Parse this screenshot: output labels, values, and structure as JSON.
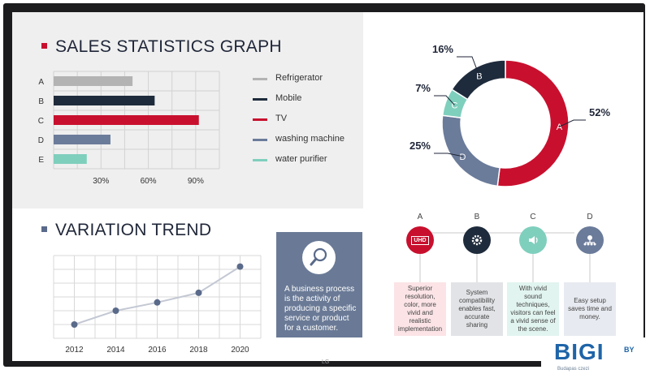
{
  "colors": {
    "title_dark": "#1f2638",
    "accent_red": "#c8102e",
    "accent_slate": "#5a6a8a",
    "refrigerator": "#b3b3b3",
    "mobile": "#1e2b3c",
    "tv": "#c8102e",
    "washing_machine": "#6b7b9a",
    "water_purifier": "#7fcfbd"
  },
  "sales": {
    "title": "SALES STATISTICS GRAPH",
    "legend": [
      "Refrigerator",
      "Mobile",
      "TV",
      "washing machine",
      "water purifier"
    ]
  },
  "trend": {
    "title": "VARIATION TREND"
  },
  "process_card": {
    "icon": "magnifier-icon",
    "text": "A business process is the activity of producing a specific service or product for a customer."
  },
  "features": [
    {
      "letter": "A",
      "icon": "uhd-icon",
      "badge": "UHD",
      "text": "Superior resolution, color, more vivid and realistic implementation"
    },
    {
      "letter": "B",
      "icon": "gear-icon",
      "text": "System compatibility enables fast, accurate sharing"
    },
    {
      "letter": "C",
      "icon": "speaker-icon",
      "text": "With vivid sound techniques, visitors can feel a vivid sense of the scene."
    },
    {
      "letter": "D",
      "icon": "network-icon",
      "text": "Easy setup saves time and money."
    }
  ],
  "brand": {
    "name": "BIGI",
    "suffix": "BY",
    "tagline": "Budapas czezi"
  },
  "bezel_logo": "LG",
  "chart_data": [
    {
      "type": "bar",
      "orientation": "horizontal",
      "title": "SALES STATISTICS GRAPH",
      "categories": [
        "A",
        "B",
        "C",
        "D",
        "E"
      ],
      "values": [
        50,
        64,
        92,
        36,
        21
      ],
      "value_unit": "%",
      "series_labels": [
        "Refrigerator",
        "Mobile",
        "TV",
        "washing machine",
        "water purifier"
      ],
      "xlim": [
        0,
        105
      ],
      "xticks": [
        30,
        60,
        90
      ],
      "xtick_labels": [
        "30%",
        "60%",
        "90%"
      ],
      "grid": true,
      "legend": "right"
    },
    {
      "type": "pie",
      "style": "donut",
      "slices": [
        {
          "label": "A",
          "value": 52,
          "display": "52%"
        },
        {
          "label": "D",
          "value": 25,
          "display": "25%"
        },
        {
          "label": "C",
          "value": 7,
          "display": "7%"
        },
        {
          "label": "B",
          "value": 16,
          "display": "16%"
        }
      ]
    },
    {
      "type": "line",
      "title": "VARIATION TREND",
      "x": [
        2012,
        2014,
        2016,
        2018,
        2020
      ],
      "xtick_labels": [
        "2012",
        "2014",
        "2016",
        "2018",
        "2020"
      ],
      "values": [
        1.0,
        2.0,
        2.6,
        3.3,
        5.2
      ],
      "xlim": [
        2011,
        2021
      ],
      "ylim": [
        0,
        6
      ],
      "grid": true
    }
  ]
}
